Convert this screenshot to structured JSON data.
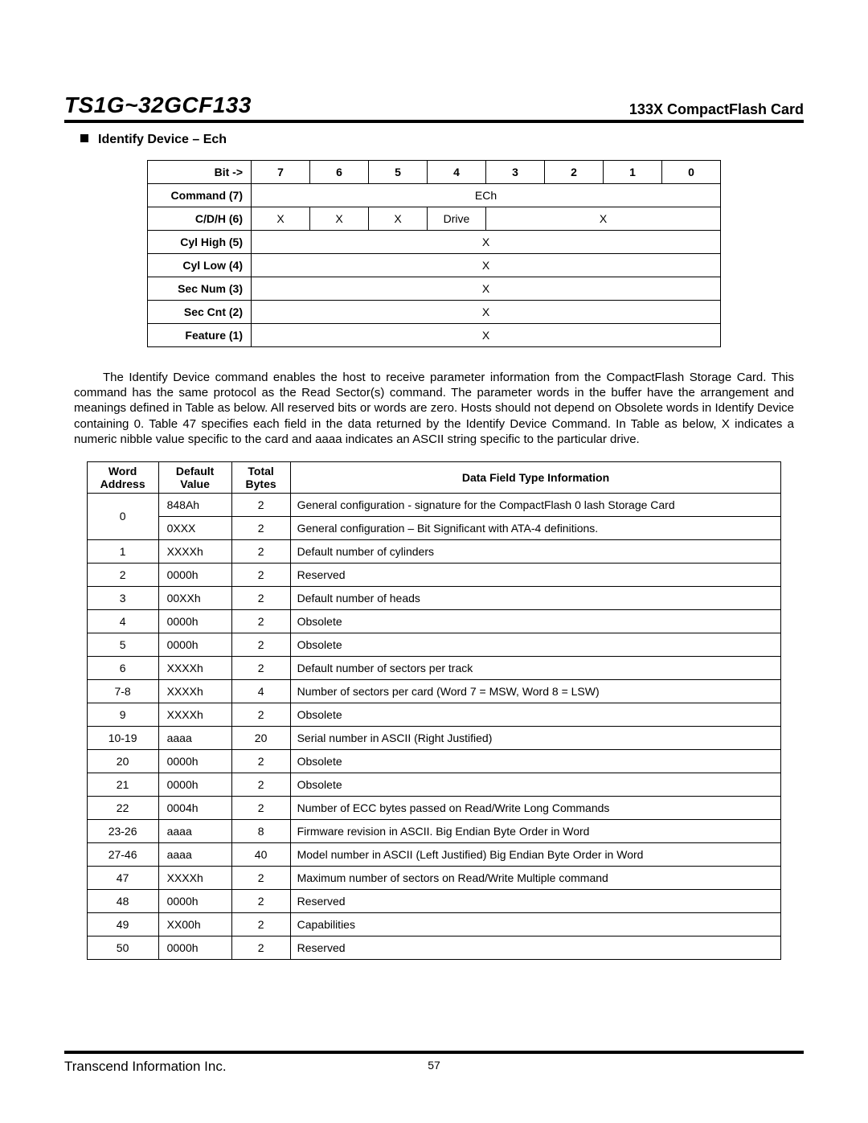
{
  "header": {
    "title": "TS1G~32GCF133",
    "subtitle": "133X CompactFlash Card"
  },
  "section": {
    "heading": "Identify Device – Ech"
  },
  "register_table": {
    "bit_header": "Bit ->",
    "bits": [
      "7",
      "6",
      "5",
      "4",
      "3",
      "2",
      "1",
      "0"
    ],
    "rows": [
      {
        "label": "Command (7)",
        "type": "span",
        "text": "ECh"
      },
      {
        "label": "C/D/H (6)",
        "type": "cdh",
        "cells": [
          "X",
          "X",
          "X",
          "Drive"
        ],
        "tail_text": "X"
      },
      {
        "label": "Cyl High (5)",
        "type": "span",
        "text": "X"
      },
      {
        "label": "Cyl Low (4)",
        "type": "span",
        "text": "X"
      },
      {
        "label": "Sec Num (3)",
        "type": "span",
        "text": "X"
      },
      {
        "label": "Sec Cnt (2)",
        "type": "span",
        "text": "X"
      },
      {
        "label": "Feature (1)",
        "type": "span",
        "text": "X"
      }
    ]
  },
  "paragraph": "The Identify Device command enables the host to receive parameter information from the CompactFlash Storage Card. This command has the same protocol as the Read Sector(s) command. The parameter words in the buffer have the arrangement and meanings defined in Table as below. All reserved bits or words are zero. Hosts should not depend on Obsolete words in Identify Device containing 0. Table 47 specifies each field in the data returned by the Identify Device Command. In Table as below, X indicates a numeric nibble value specific to the card and aaaa indicates an ASCII string specific to the particular drive.",
  "word_table": {
    "headers": {
      "address": "Word Address",
      "default": "Default Value",
      "bytes": "Total Bytes",
      "info": "Data Field Type Information"
    },
    "rows": [
      {
        "addr": "0",
        "rowspan": 2,
        "def": "848Ah",
        "bytes": "2",
        "info": "General configuration - signature for the CompactFlash 0 lash Storage Card"
      },
      {
        "addr": null,
        "def": "0XXX",
        "bytes": "2",
        "info": "General configuration – Bit Significant with ATA-4 definitions."
      },
      {
        "addr": "1",
        "def": "XXXXh",
        "bytes": "2",
        "info": "Default number of cylinders"
      },
      {
        "addr": "2",
        "def": "0000h",
        "bytes": "2",
        "info": "Reserved"
      },
      {
        "addr": "3",
        "def": "00XXh",
        "bytes": "2",
        "info": "Default number of heads"
      },
      {
        "addr": "4",
        "def": "0000h",
        "bytes": "2",
        "info": "Obsolete"
      },
      {
        "addr": "5",
        "def": "0000h",
        "bytes": "2",
        "info": "Obsolete"
      },
      {
        "addr": "6",
        "def": "XXXXh",
        "bytes": "2",
        "info": "Default number of sectors per track"
      },
      {
        "addr": "7-8",
        "def": "XXXXh",
        "bytes": "4",
        "info": "Number of sectors per card (Word 7 = MSW, Word 8 = LSW)"
      },
      {
        "addr": "9",
        "def": "XXXXh",
        "bytes": "2",
        "info": "Obsolete"
      },
      {
        "addr": "10-19",
        "def": "aaaa",
        "bytes": "20",
        "info": "Serial number in ASCII (Right Justified)"
      },
      {
        "addr": "20",
        "def": "0000h",
        "bytes": "2",
        "info": "Obsolete"
      },
      {
        "addr": "21",
        "def": "0000h",
        "bytes": "2",
        "info": "Obsolete"
      },
      {
        "addr": "22",
        "def": "0004h",
        "bytes": "2",
        "info": "Number of ECC bytes passed on Read/Write Long Commands"
      },
      {
        "addr": "23-26",
        "def": "aaaa",
        "bytes": "8",
        "info": "Firmware revision in ASCII. Big Endian Byte Order in Word"
      },
      {
        "addr": "27-46",
        "def": "aaaa",
        "bytes": "40",
        "info": "Model number in ASCII (Left Justified) Big Endian Byte Order in Word"
      },
      {
        "addr": "47",
        "def": "XXXXh",
        "bytes": "2",
        "info": "Maximum number of sectors on Read/Write Multiple command"
      },
      {
        "addr": "48",
        "def": "0000h",
        "bytes": "2",
        "info": "Reserved"
      },
      {
        "addr": "49",
        "def": "XX00h",
        "bytes": "2",
        "info": "Capabilities"
      },
      {
        "addr": "50",
        "def": "0000h",
        "bytes": "2",
        "info": "Reserved"
      }
    ]
  },
  "footer": {
    "company": "Transcend Information Inc.",
    "page": "57"
  }
}
